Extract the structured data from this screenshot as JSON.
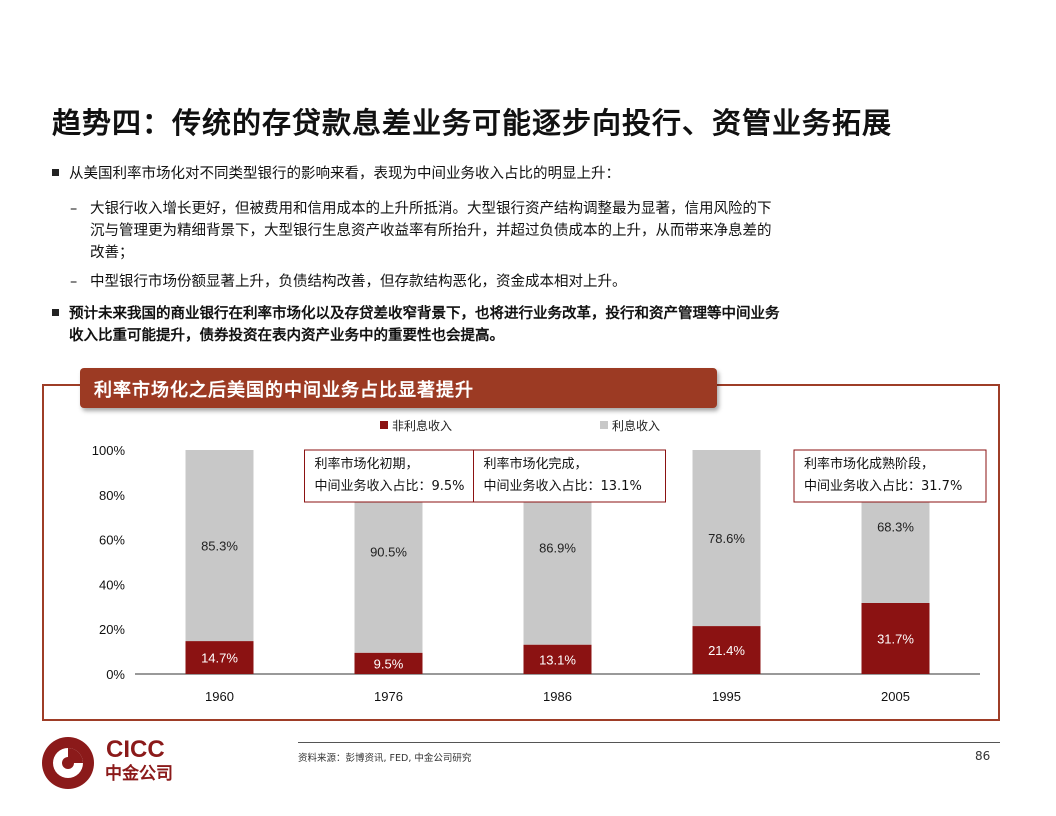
{
  "slide": {
    "title": "趋势四：传统的存贷款息差业务可能逐步向投行、资管业务拓展",
    "bullet1": "从美国利率市场化对不同类型银行的影响来看，表现为中间业务收入占比的明显上升：",
    "sub1_line1": "大银行收入增长更好，但被费用和信用成本的上升所抵消。大型银行资产结构调整最为显著，信用风险的下",
    "sub1_line2": "沉与管理更为精细背景下，大型银行生息资产收益率有所抬升，并超过负债成本的上升，从而带来净息差的",
    "sub1_line3": "改善；",
    "sub2": "中型银行市场份额显著上升，负债结构改善，但存款结构恶化，资金成本相对上升。",
    "bullet2_line1": "预计未来我国的商业银行在利率市场化以及存贷差收窄背景下，也将进行业务改革，投行和资产管理等中间业务",
    "bullet2_line2": "收入比重可能提升，债券投资在表内资产业务中的重要性也会提高。",
    "dash": "–"
  },
  "chart_banner": "利率市场化之后美国的中间业务占比显著提升",
  "chart_data": {
    "type": "bar",
    "stacked": true,
    "categories": [
      "1960",
      "1976",
      "1986",
      "1995",
      "2005"
    ],
    "series": [
      {
        "name": "非利息收入",
        "values": [
          14.7,
          9.5,
          13.1,
          21.4,
          31.7
        ],
        "color": "#8b1212",
        "label_color": "#ffffff"
      },
      {
        "name": "利息收入",
        "values": [
          85.3,
          90.5,
          86.9,
          78.6,
          68.3
        ],
        "color": "#c8c8c8",
        "label_color": "#222222"
      }
    ],
    "yticks": [
      "0%",
      "20%",
      "40%",
      "60%",
      "80%",
      "100%"
    ],
    "ylim": [
      0,
      100
    ],
    "legend_position": "top",
    "annotations": [
      {
        "line1": "利率市场化初期，",
        "line2": "中间业务收入占比：9.5%",
        "anchor_category": "1976"
      },
      {
        "line1": "利率市场化完成，",
        "line2": "中间业务收入占比：13.1%",
        "anchor_category": "1986"
      },
      {
        "line1": "利率市场化成熟阶段，",
        "line2": "中间业务收入占比：31.7%",
        "anchor_category": "2005"
      }
    ]
  },
  "footer": {
    "logo_en": "CICC",
    "logo_cn": "中金公司",
    "source": "资料来源：彭博资讯, FED, 中金公司研究",
    "page": "86"
  },
  "colors": {
    "accent": "#9c3a23",
    "bar_dark": "#8b1212",
    "bar_light": "#c8c8c8",
    "box_border": "#8b1212"
  }
}
